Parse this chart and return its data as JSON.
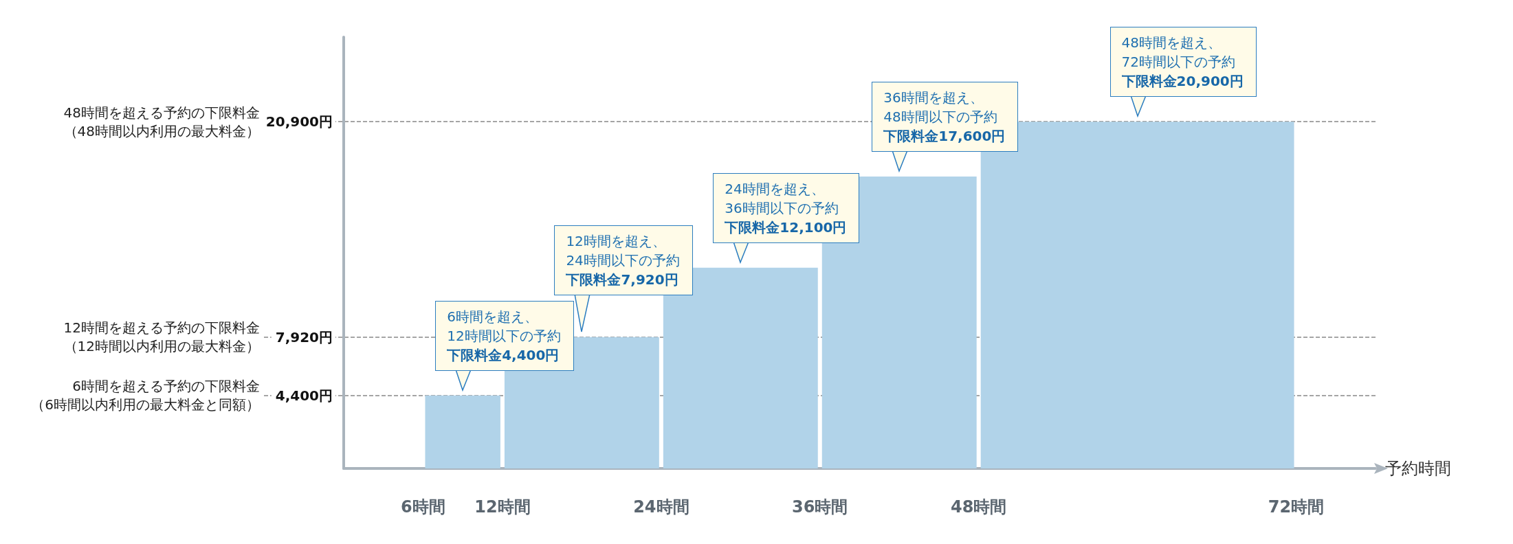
{
  "chart_data": {
    "type": "histogram",
    "bins": [
      6,
      12,
      24,
      36,
      48,
      72
    ],
    "values": [
      4400,
      7920,
      12100,
      17600,
      20900
    ],
    "color": "#b1d3e9",
    "xlabel": "予約時間",
    "xlim": [
      0,
      78
    ],
    "xticks": [
      {
        "value": 6,
        "label": "6時間"
      },
      {
        "value": 12,
        "label": "12時間"
      },
      {
        "value": 24,
        "label": "24時間"
      },
      {
        "value": 36,
        "label": "36時間"
      },
      {
        "value": 48,
        "label": "48時間"
      },
      {
        "value": 72,
        "label": "72時間"
      }
    ],
    "ylim": [
      0,
      26000
    ],
    "yticks": [
      {
        "value": 4400,
        "label": "4,400円"
      },
      {
        "value": 7920,
        "label": "7,920円"
      },
      {
        "value": 20900,
        "label": "20,900円"
      }
    ],
    "ref_lines": [
      {
        "axis": "y",
        "value": 20900,
        "label": "48時間を超える予約の下限料金（48時間以内利用の最大料金）",
        "color": "#888888",
        "line_style": "dashed"
      },
      {
        "axis": "y",
        "value": 7920,
        "label": "12時間を超える予約の下限料金（12時間以内利用の最大料金）",
        "color": "#888888",
        "line_style": "dashed"
      },
      {
        "axis": "y",
        "value": 4400,
        "label": "6時間を超える予約の下限料金（6時間以内利用の最大料金と同額）",
        "color": "#888888",
        "line_style": "dashed"
      }
    ],
    "annotations": [
      "6時間を超え、12時間以下の予約",
      {
        "text": "下限料金4,400円",
        "x": 9,
        "y": 4400
      },
      "12時間を超え、24時間以下の予約",
      {
        "text": "下限料金7,920円",
        "x": 18,
        "y": 7920
      },
      "24時間を超え、36時間以下の予約",
      {
        "text": "下限料金12,100円",
        "x": 30,
        "y": 12100
      },
      "36時間を超え、48時間以下の予約",
      {
        "text": "下限料金17,600円",
        "x": 42,
        "y": 17600
      },
      "48時間を超え、72時間以下の予約",
      {
        "text": "下限料金20,900円",
        "x": 60,
        "y": 20900
      }
    ]
  }
}
